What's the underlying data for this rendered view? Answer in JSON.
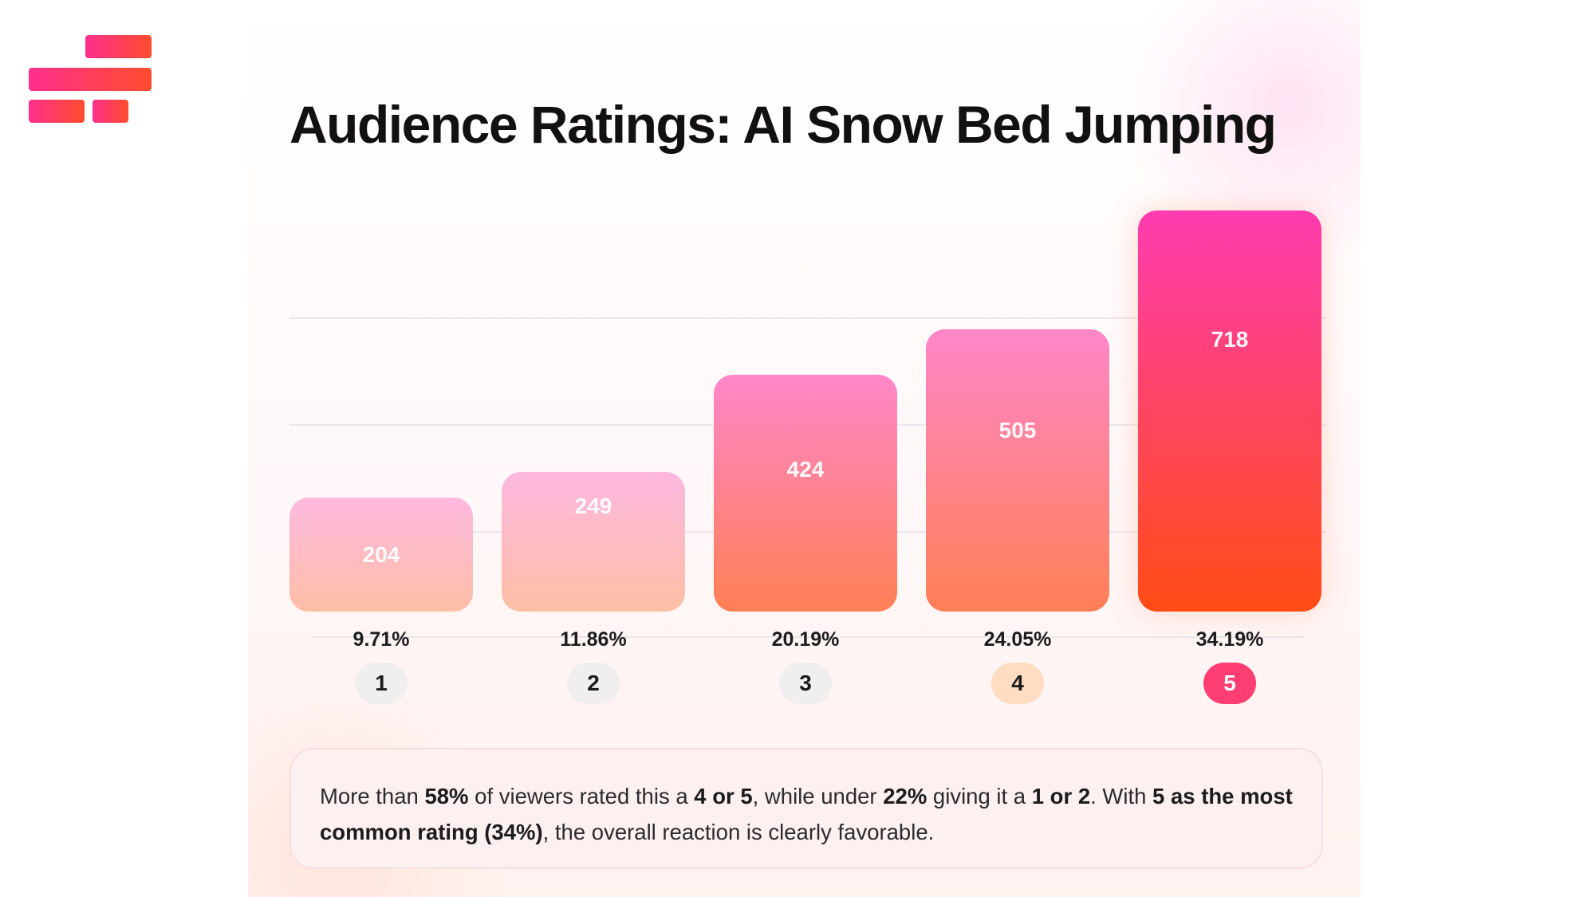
{
  "logo": {
    "name": "brand-logo"
  },
  "chart_data": {
    "type": "bar",
    "title": "Audience Ratings: AI Snow Bed Jumping",
    "categories": [
      "1",
      "2",
      "3",
      "4",
      "5"
    ],
    "values": [
      204,
      249,
      424,
      505,
      718
    ],
    "percentages": [
      "9.71%",
      "11.86%",
      "20.19%",
      "24.05%",
      "34.19%"
    ],
    "value_labels": [
      "204",
      "249",
      "424",
      "505",
      "718"
    ],
    "ylim": [
      0,
      800
    ],
    "xlabel": "",
    "ylabel": "",
    "grid": true,
    "legend": "none"
  },
  "colors": {
    "low_top": "#fdb8df",
    "low_bottom": "#ffbfa6",
    "mid_top": "#ff86c9",
    "mid_bottom": "#ff8055",
    "high_top": "#ff3cb0",
    "high_bottom": "#ff4c14",
    "badge_neutral": "#f1eef0",
    "badge_four": "#ffdcc2",
    "badge_five": "#ff3f73"
  },
  "summary": {
    "p1": "More than ",
    "b1": "58%",
    "p2": " of viewers rated this a ",
    "b2": "4 or 5",
    "p3": ", while under ",
    "b3": "22%",
    "p4": " giving it a ",
    "b4": "1 or 2",
    "p5": ". With ",
    "b5": "5 as the most common rating (34%)",
    "p6": ", the overall reaction is clearly favorable."
  }
}
